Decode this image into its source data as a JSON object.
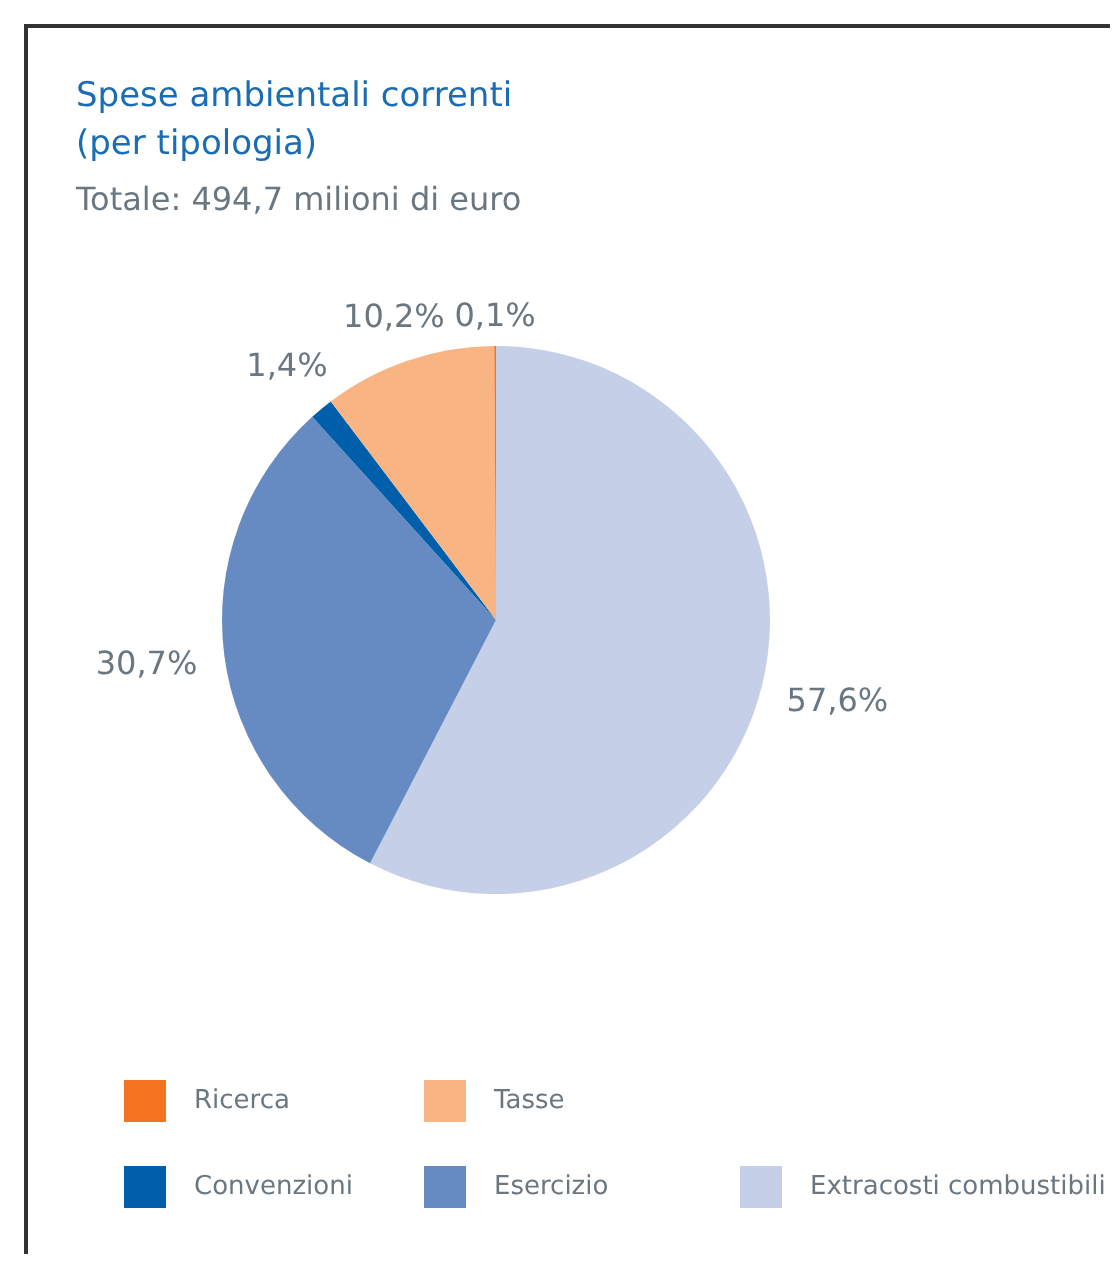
{
  "chart_data": {
    "type": "pie",
    "title": "Spese ambientali correnti (per tipologia)",
    "subtitle": "Totale: 494,7 milioni di euro",
    "categories": [
      "Extracosti combustibili",
      "Esercizio",
      "Convenzioni",
      "Tasse",
      "Ricerca"
    ],
    "values": [
      57.6,
      30.7,
      1.4,
      10.2,
      0.1
    ],
    "colors": [
      "#c5d0e8",
      "#668bc3",
      "#005fab",
      "#f8b483",
      "#f47321"
    ],
    "value_labels": [
      "57,6%",
      "30,7%",
      "1,4%",
      "10,2%",
      "0,1%"
    ],
    "legend": "bottom"
  }
}
